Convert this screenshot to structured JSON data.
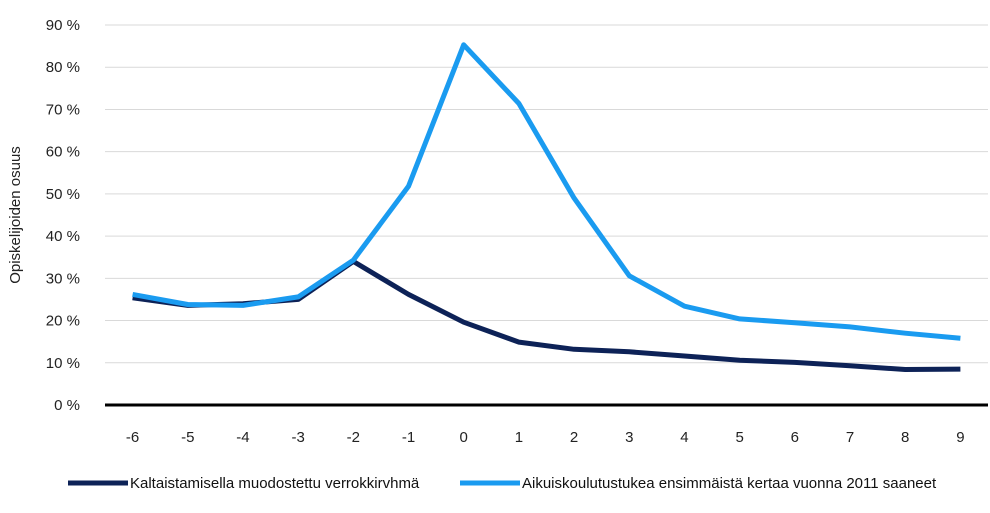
{
  "chart_data": {
    "type": "line",
    "title": "",
    "xlabel": "",
    "ylabel": "Opiskelijoiden osuus",
    "x": [
      -6,
      -5,
      -4,
      -3,
      -2,
      -1,
      0,
      1,
      2,
      3,
      4,
      5,
      6,
      7,
      8,
      9
    ],
    "ylim": [
      0,
      90
    ],
    "ytick_labels": [
      "0 %",
      "10 %",
      "20 %",
      "30 %",
      "40 %",
      "50 %",
      "60 %",
      "70 %",
      "80 %",
      "90 %"
    ],
    "grid": true,
    "legend_position": "bottom",
    "series": [
      {
        "name": "Kaltaistamisella muodostettu verrokkirvhmä",
        "color": "#0d2257",
        "values": [
          25.4,
          23.6,
          24.0,
          25.0,
          34.0,
          26.2,
          19.6,
          14.9,
          13.2,
          12.6,
          11.6,
          10.6,
          10.1,
          9.3,
          8.4,
          8.5
        ]
      },
      {
        "name": "Aikuiskoulutustukea ensimmäistä kertaa vuonna 2011 saaneet",
        "color": "#1a9bf0",
        "values": [
          26.2,
          23.8,
          23.6,
          25.6,
          34.3,
          51.8,
          85.3,
          71.4,
          49.0,
          30.6,
          23.4,
          20.4,
          19.5,
          18.5,
          17.0,
          15.8
        ]
      }
    ]
  }
}
